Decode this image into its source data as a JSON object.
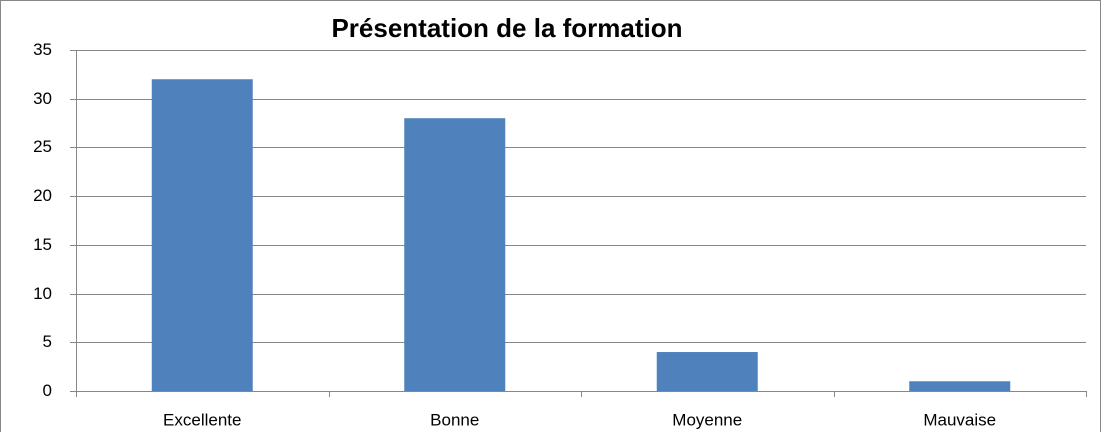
{
  "chart_data": {
    "type": "bar",
    "title": "Présentation de la formation",
    "categories": [
      "Excellente",
      "Bonne",
      "Moyenne",
      "Mauvaise"
    ],
    "values": [
      32,
      28,
      4,
      1
    ],
    "color": "#4f81bd",
    "ylim": [
      0,
      35
    ],
    "yticks": [
      0,
      5,
      10,
      15,
      20,
      25,
      30,
      35
    ],
    "grid": true
  }
}
